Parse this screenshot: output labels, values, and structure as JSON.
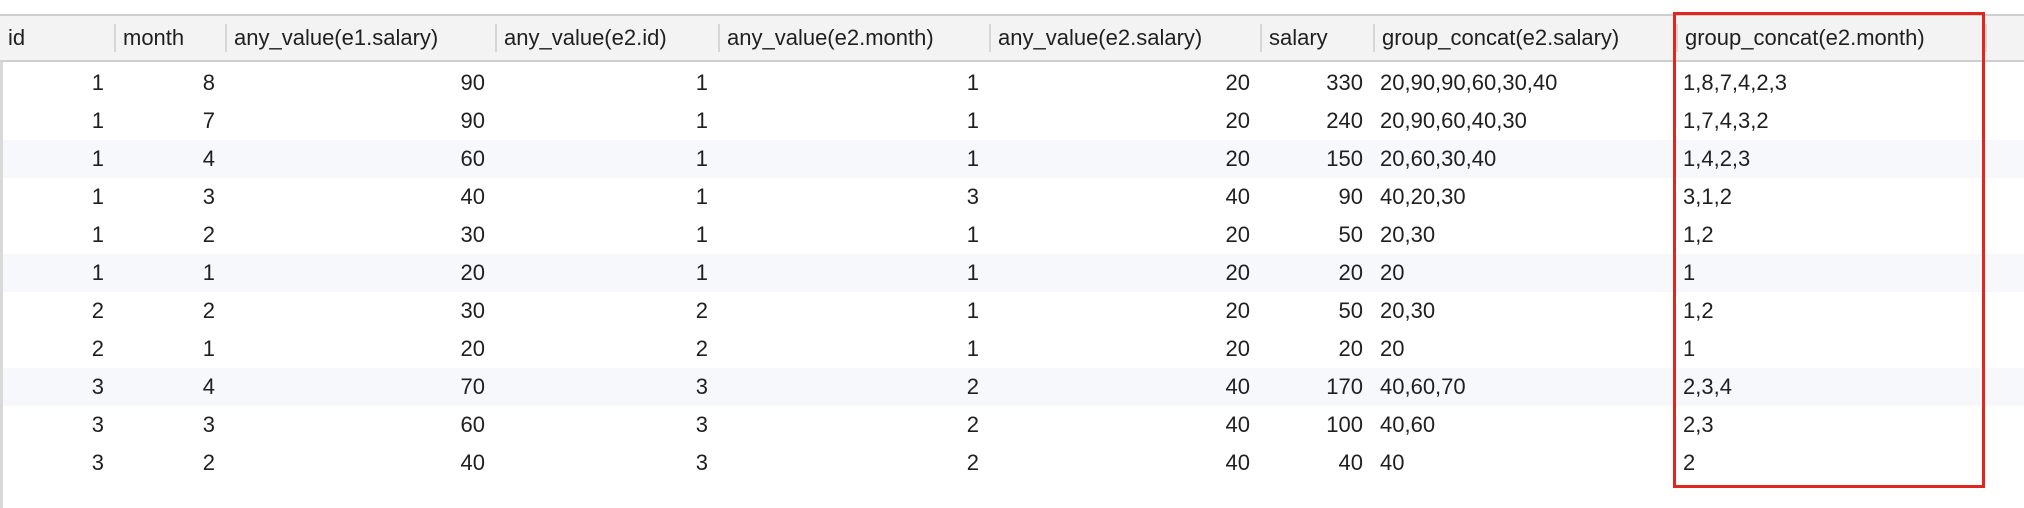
{
  "columns": [
    "id",
    "month",
    "any_value(e1.salary)",
    "any_value(e2.id)",
    "any_value(e2.month)",
    "any_value(e2.salary)",
    "salary",
    "group_concat(e2.salary)",
    "group_concat(e2.month)"
  ],
  "rows": [
    [
      "1",
      "8",
      "90",
      "1",
      "1",
      "20",
      "330",
      "20,90,90,60,30,40",
      "1,8,7,4,2,3"
    ],
    [
      "1",
      "7",
      "90",
      "1",
      "1",
      "20",
      "240",
      "20,90,60,40,30",
      "1,7,4,3,2"
    ],
    [
      "1",
      "4",
      "60",
      "1",
      "1",
      "20",
      "150",
      "20,60,30,40",
      "1,4,2,3"
    ],
    [
      "1",
      "3",
      "40",
      "1",
      "3",
      "40",
      "90",
      "40,20,30",
      "3,1,2"
    ],
    [
      "1",
      "2",
      "30",
      "1",
      "1",
      "20",
      "50",
      "20,30",
      "1,2"
    ],
    [
      "1",
      "1",
      "20",
      "1",
      "1",
      "20",
      "20",
      "20",
      "1"
    ],
    [
      "2",
      "2",
      "30",
      "2",
      "1",
      "20",
      "50",
      "20,30",
      "1,2"
    ],
    [
      "2",
      "1",
      "20",
      "2",
      "1",
      "20",
      "20",
      "20",
      "1"
    ],
    [
      "3",
      "4",
      "70",
      "3",
      "2",
      "40",
      "170",
      "40,60,70",
      "2,3,4"
    ],
    [
      "3",
      "3",
      "60",
      "3",
      "2",
      "40",
      "100",
      "40,60",
      "2,3"
    ],
    [
      "3",
      "2",
      "40",
      "3",
      "2",
      "40",
      "40",
      "40",
      "2"
    ]
  ],
  "colors": {
    "highlight_border": "#e0261f",
    "header_background": "#f3f3f3",
    "alternate_row_background": "#f6f8fb"
  }
}
